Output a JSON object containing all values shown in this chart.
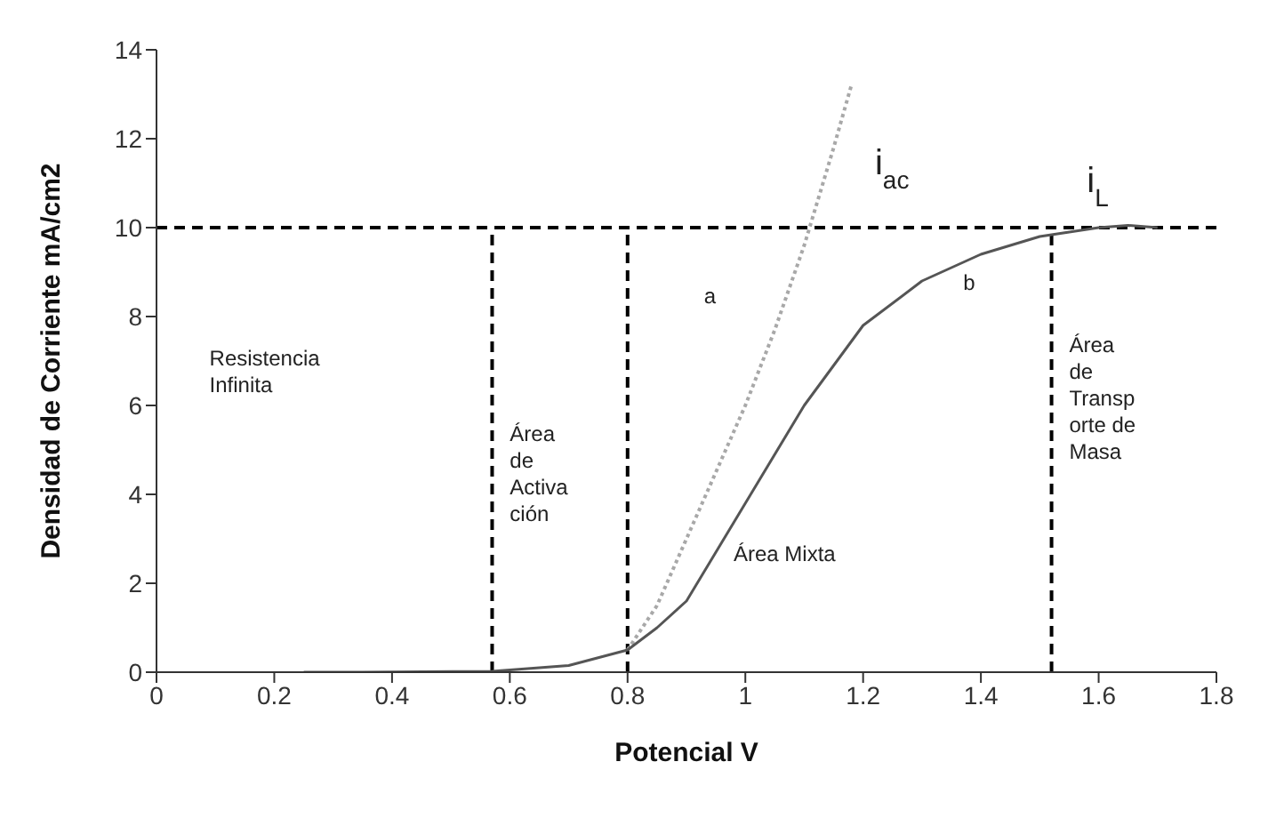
{
  "chart_data": {
    "type": "line",
    "xlabel": "Potencial V",
    "ylabel": "Densidad de Corriente mA/cm2",
    "xlim": [
      0,
      1.8
    ],
    "xticks": [
      0,
      0.2,
      0.4,
      0.6,
      0.8,
      1,
      1.2,
      1.4,
      1.6,
      1.8
    ],
    "ylim": [
      0,
      14
    ],
    "yticks": [
      0,
      2,
      4,
      6,
      8,
      10,
      12,
      14
    ],
    "marker": "none",
    "series": [
      {
        "color": "#a8a8a8",
        "line_style": "dotted",
        "x": [
          0.8,
          0.85,
          0.9,
          0.95,
          1.0,
          1.05,
          1.1,
          1.15,
          1.18
        ],
        "values": [
          0.5,
          1.5,
          3,
          4.5,
          6,
          7.7,
          9.6,
          11.8,
          13.2
        ]
      },
      {
        "color": "#555555",
        "line_style": "solid",
        "x": [
          0.25,
          0.35,
          0.57,
          0.7,
          0.8,
          0.85,
          0.9,
          1.0,
          1.1,
          1.2,
          1.3,
          1.4,
          1.5,
          1.55,
          1.6,
          1.65,
          1.7
        ],
        "values": [
          0,
          0,
          0.02,
          0.15,
          0.5,
          1.0,
          1.6,
          3.8,
          6.0,
          7.8,
          8.8,
          9.4,
          9.8,
          9.9,
          10,
          10.05,
          10
        ]
      }
    ],
    "ref_lines": [
      {
        "axis": "y",
        "value": 10,
        "line_style": "dashed",
        "color": "#000000"
      },
      {
        "axis": "x",
        "value": 0.57,
        "line_style": "dashed",
        "color": "#000000"
      },
      {
        "axis": "x",
        "value": 0.8,
        "line_style": "dashed",
        "color": "#000000"
      },
      {
        "axis": "x",
        "value": 1.52,
        "line_style": "dashed",
        "color": "#000000"
      }
    ],
    "annotations": [
      "Resistencia\nInfinita",
      "Área\nde\nActiva\nción",
      "Área Mixta",
      "Área\nde\nTransp\norte de\nMasa",
      "a",
      "b",
      "i$_{ac}$",
      "i$_{L}$"
    ]
  }
}
